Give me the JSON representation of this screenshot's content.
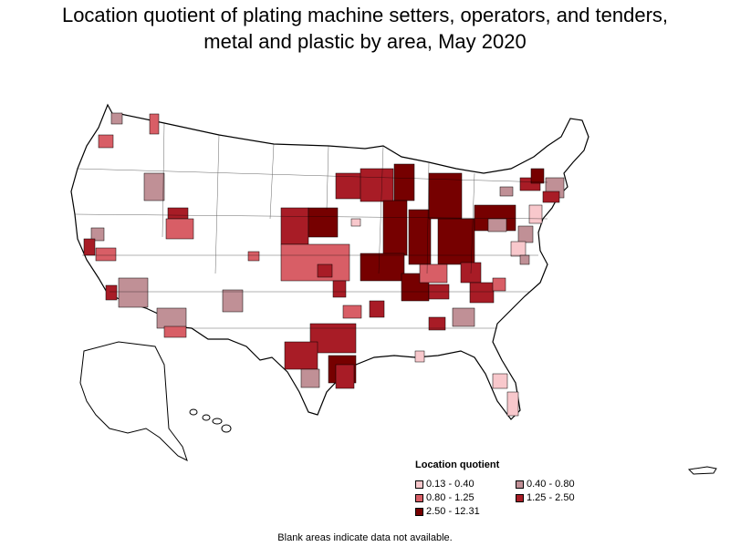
{
  "title": {
    "line1": "Location quotient of plating machine setters, operators, and tenders,",
    "line2": "metal and plastic by area, May 2020"
  },
  "legend": {
    "title": "Location quotient",
    "items": [
      {
        "label": "0.13 - 0.40",
        "color": "#f8c8cc"
      },
      {
        "label": "0.40 - 0.80",
        "color": "#c09096"
      },
      {
        "label": "0.80 - 1.25",
        "color": "#d85e66"
      },
      {
        "label": "1.25 - 2.50",
        "color": "#a81c26"
      },
      {
        "label": "2.50 - 12.31",
        "color": "#760000"
      }
    ]
  },
  "footnote": "Blank areas indicate data not available.",
  "colors": {
    "outline": "#000000",
    "blank": "#ffffff"
  }
}
